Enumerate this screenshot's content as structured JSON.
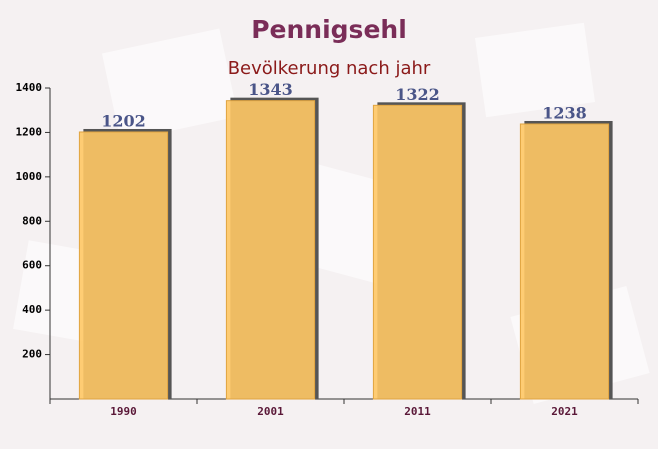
{
  "chart_data": {
    "type": "bar",
    "title": "Pennigsehl",
    "subtitle": "Bevölkerung nach jahr",
    "categories": [
      "1990",
      "2001",
      "2011",
      "2021"
    ],
    "values": [
      1202,
      1343,
      1322,
      1238
    ],
    "color": "#ffc865",
    "ylim": [
      0,
      1400
    ],
    "yticks": [
      200,
      400,
      600,
      800,
      1000,
      1200,
      1400
    ]
  }
}
